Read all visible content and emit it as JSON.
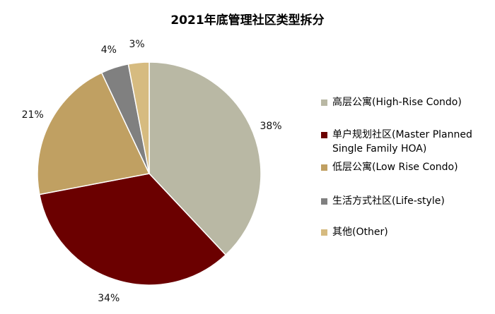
{
  "chart_data": {
    "type": "pie",
    "title": "2021年底管理社区类型拆分",
    "unit": "%",
    "start_angle_deg": 0,
    "direction": "clockwise",
    "legend_position": "right",
    "slices": [
      {
        "label": "高层公寓(High-Rise Condo)",
        "value": 38,
        "value_label": "38%",
        "color": "#b9b8a4"
      },
      {
        "label": "单户规划社区(Master Planned Single Family HOA)",
        "value": 34,
        "value_label": "34%",
        "color": "#6b0000"
      },
      {
        "label": "低层公寓(Low Rise Condo)",
        "value": 21,
        "value_label": "21%",
        "color": "#c0a062"
      },
      {
        "label": "生活方式社区(Life-style)",
        "value": 4,
        "value_label": "4%",
        "color": "#808080"
      },
      {
        "label": "其他(Other)",
        "value": 3,
        "value_label": "3%",
        "color": "#d6bb80"
      }
    ]
  }
}
